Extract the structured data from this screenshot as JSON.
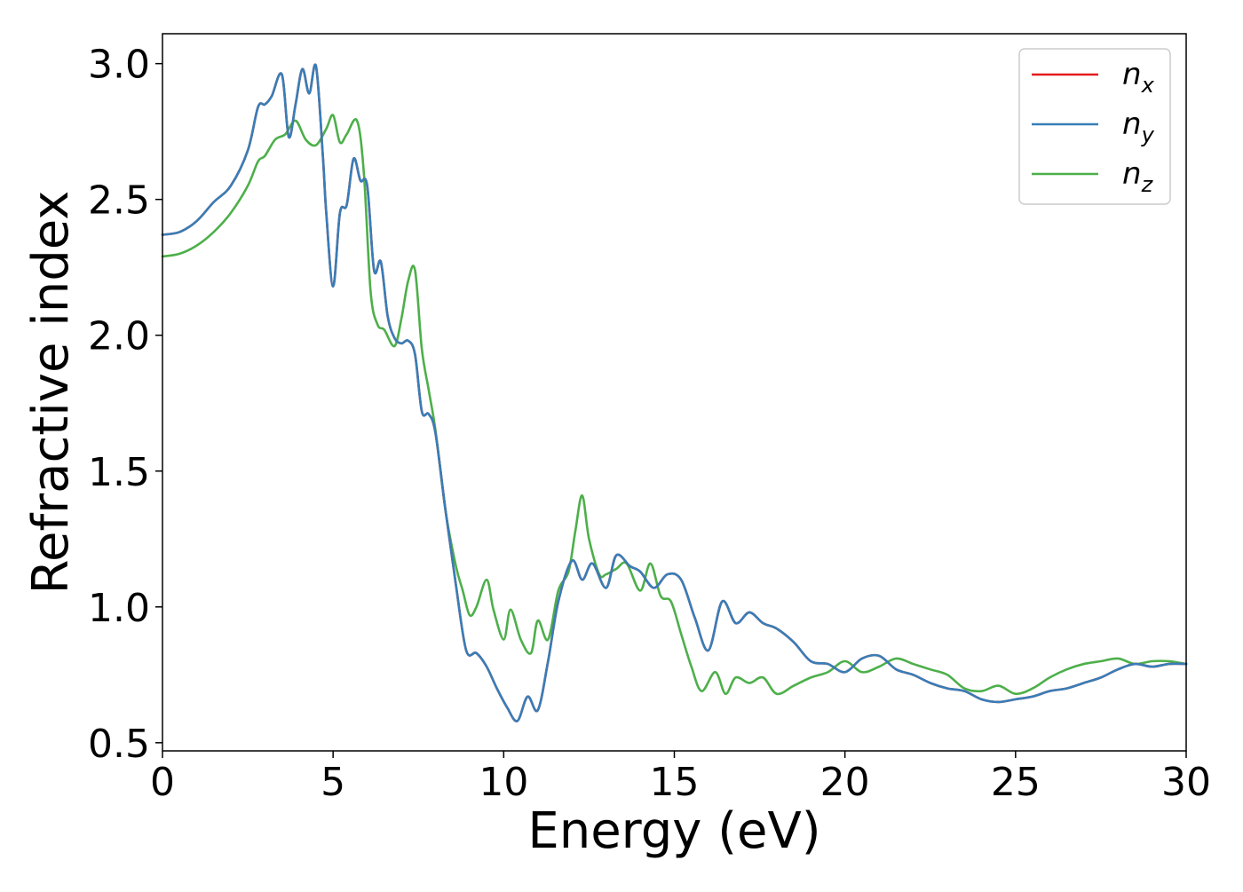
{
  "chart_data": {
    "type": "line",
    "title": "",
    "xlabel": "Energy (eV)",
    "ylabel": "Refractive index",
    "xlim": [
      0,
      30
    ],
    "ylim": [
      0.47,
      3.11
    ],
    "xticks": [
      0,
      5,
      10,
      15,
      20,
      25,
      30
    ],
    "xtick_labels": [
      "0",
      "5",
      "10",
      "15",
      "20",
      "25",
      "30"
    ],
    "yticks": [
      0.5,
      1.0,
      1.5,
      2.0,
      2.5,
      3.0
    ],
    "ytick_labels": [
      "0.5",
      "1.0",
      "1.5",
      "2.0",
      "2.5",
      "3.0"
    ],
    "grid": false,
    "legend_position": "top-right",
    "series": [
      {
        "name": "n_x",
        "label_main": "n",
        "label_sub": "x",
        "color": "#e41a1c",
        "x": [
          0,
          0.5,
          1,
          1.5,
          2,
          2.5,
          2.8,
          3.0,
          3.2,
          3.5,
          3.7,
          3.9,
          4.1,
          4.3,
          4.5,
          4.7,
          4.8,
          5.0,
          5.2,
          5.4,
          5.6,
          5.8,
          6.0,
          6.2,
          6.4,
          6.6,
          6.8,
          7.0,
          7.2,
          7.4,
          7.6,
          7.8,
          8.0,
          8.3,
          8.6,
          8.9,
          9.2,
          9.5,
          9.8,
          10.1,
          10.4,
          10.7,
          11.0,
          11.3,
          11.6,
          12.0,
          12.3,
          12.6,
          13.0,
          13.3,
          13.7,
          14.0,
          14.4,
          14.8,
          15.2,
          15.6,
          16.0,
          16.4,
          16.8,
          17.2,
          17.6,
          18.0,
          18.5,
          19.0,
          19.5,
          20.0,
          20.5,
          21.0,
          21.5,
          22.0,
          22.5,
          23.0,
          23.5,
          24.0,
          24.5,
          25.0,
          25.5,
          26.0,
          26.5,
          27.0,
          27.5,
          28.0,
          28.5,
          29.0,
          29.5,
          30.0
        ],
        "y": [
          2.37,
          2.38,
          2.42,
          2.49,
          2.55,
          2.68,
          2.84,
          2.85,
          2.88,
          2.96,
          2.73,
          2.85,
          2.98,
          2.89,
          2.99,
          2.66,
          2.45,
          2.18,
          2.45,
          2.48,
          2.65,
          2.57,
          2.55,
          2.24,
          2.27,
          2.07,
          1.99,
          1.97,
          1.98,
          1.93,
          1.72,
          1.71,
          1.64,
          1.35,
          1.08,
          0.84,
          0.83,
          0.78,
          0.7,
          0.63,
          0.58,
          0.67,
          0.62,
          0.8,
          1.02,
          1.17,
          1.1,
          1.16,
          1.07,
          1.19,
          1.15,
          1.13,
          1.07,
          1.12,
          1.1,
          0.96,
          0.84,
          1.02,
          0.94,
          0.98,
          0.94,
          0.92,
          0.87,
          0.8,
          0.79,
          0.76,
          0.81,
          0.82,
          0.77,
          0.75,
          0.72,
          0.7,
          0.69,
          0.66,
          0.65,
          0.66,
          0.67,
          0.69,
          0.7,
          0.72,
          0.74,
          0.77,
          0.79,
          0.78,
          0.79,
          0.79
        ]
      },
      {
        "name": "n_y",
        "label_main": "n",
        "label_sub": "y",
        "color": "#377eb8",
        "x": [
          0,
          0.5,
          1,
          1.5,
          2,
          2.5,
          2.8,
          3.0,
          3.2,
          3.5,
          3.7,
          3.9,
          4.1,
          4.3,
          4.5,
          4.7,
          4.8,
          5.0,
          5.2,
          5.4,
          5.6,
          5.8,
          6.0,
          6.2,
          6.4,
          6.6,
          6.8,
          7.0,
          7.2,
          7.4,
          7.6,
          7.8,
          8.0,
          8.3,
          8.6,
          8.9,
          9.2,
          9.5,
          9.8,
          10.1,
          10.4,
          10.7,
          11.0,
          11.3,
          11.6,
          12.0,
          12.3,
          12.6,
          13.0,
          13.3,
          13.7,
          14.0,
          14.4,
          14.8,
          15.2,
          15.6,
          16.0,
          16.4,
          16.8,
          17.2,
          17.6,
          18.0,
          18.5,
          19.0,
          19.5,
          20.0,
          20.5,
          21.0,
          21.5,
          22.0,
          22.5,
          23.0,
          23.5,
          24.0,
          24.5,
          25.0,
          25.5,
          26.0,
          26.5,
          27.0,
          27.5,
          28.0,
          28.5,
          29.0,
          29.5,
          30.0
        ],
        "y": [
          2.37,
          2.38,
          2.42,
          2.49,
          2.55,
          2.68,
          2.84,
          2.85,
          2.88,
          2.96,
          2.73,
          2.85,
          2.98,
          2.89,
          2.99,
          2.66,
          2.45,
          2.18,
          2.45,
          2.48,
          2.65,
          2.57,
          2.55,
          2.24,
          2.27,
          2.07,
          1.99,
          1.97,
          1.98,
          1.93,
          1.72,
          1.71,
          1.64,
          1.35,
          1.08,
          0.84,
          0.83,
          0.78,
          0.7,
          0.63,
          0.58,
          0.67,
          0.62,
          0.8,
          1.02,
          1.17,
          1.1,
          1.16,
          1.07,
          1.19,
          1.15,
          1.13,
          1.07,
          1.12,
          1.1,
          0.96,
          0.84,
          1.02,
          0.94,
          0.98,
          0.94,
          0.92,
          0.87,
          0.8,
          0.79,
          0.76,
          0.81,
          0.82,
          0.77,
          0.75,
          0.72,
          0.7,
          0.69,
          0.66,
          0.65,
          0.66,
          0.67,
          0.69,
          0.7,
          0.72,
          0.74,
          0.77,
          0.79,
          0.78,
          0.79,
          0.79
        ]
      },
      {
        "name": "n_z",
        "label_main": "n",
        "label_sub": "z",
        "color": "#4daf4a",
        "x": [
          0,
          0.5,
          1,
          1.5,
          2,
          2.5,
          2.8,
          3.0,
          3.3,
          3.6,
          3.9,
          4.2,
          4.5,
          4.8,
          5.0,
          5.2,
          5.4,
          5.7,
          5.9,
          6.1,
          6.3,
          6.5,
          6.8,
          7.0,
          7.2,
          7.4,
          7.6,
          7.8,
          8.0,
          8.3,
          8.6,
          8.8,
          9.0,
          9.2,
          9.5,
          9.7,
          10.0,
          10.2,
          10.5,
          10.8,
          11.0,
          11.3,
          11.6,
          11.9,
          12.1,
          12.3,
          12.5,
          12.8,
          13.0,
          13.3,
          13.6,
          14.0,
          14.3,
          14.6,
          14.9,
          15.2,
          15.5,
          15.8,
          16.2,
          16.5,
          16.8,
          17.2,
          17.6,
          18.0,
          18.5,
          19.0,
          19.5,
          20.0,
          20.5,
          21.0,
          21.5,
          22.0,
          22.5,
          23.0,
          23.5,
          24.0,
          24.5,
          25.0,
          25.5,
          26.0,
          26.5,
          27.0,
          27.5,
          28.0,
          28.5,
          29.0,
          29.5,
          30.0
        ],
        "y": [
          2.29,
          2.3,
          2.33,
          2.38,
          2.45,
          2.55,
          2.64,
          2.66,
          2.72,
          2.74,
          2.79,
          2.72,
          2.7,
          2.76,
          2.81,
          2.71,
          2.74,
          2.79,
          2.6,
          2.16,
          2.04,
          2.02,
          1.96,
          2.06,
          2.2,
          2.24,
          1.95,
          1.8,
          1.65,
          1.35,
          1.15,
          1.06,
          0.97,
          1.0,
          1.1,
          0.99,
          0.88,
          0.99,
          0.88,
          0.83,
          0.95,
          0.88,
          1.06,
          1.13,
          1.28,
          1.41,
          1.25,
          1.12,
          1.12,
          1.14,
          1.16,
          1.06,
          1.16,
          1.04,
          1.02,
          0.9,
          0.78,
          0.69,
          0.76,
          0.68,
          0.74,
          0.72,
          0.74,
          0.68,
          0.71,
          0.74,
          0.76,
          0.8,
          0.76,
          0.78,
          0.81,
          0.79,
          0.77,
          0.75,
          0.7,
          0.69,
          0.71,
          0.68,
          0.7,
          0.74,
          0.77,
          0.79,
          0.8,
          0.81,
          0.79,
          0.8,
          0.8,
          0.79
        ]
      }
    ]
  }
}
